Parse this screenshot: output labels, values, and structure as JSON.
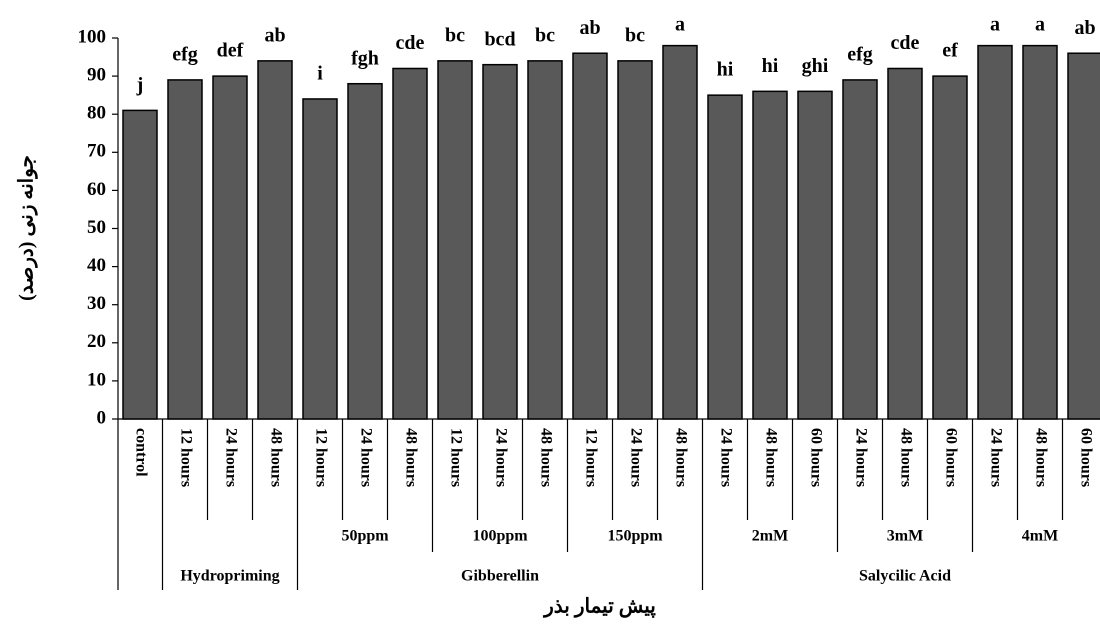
{
  "chart_data": {
    "type": "bar",
    "y_label": "جوانه زنی (درصد)",
    "x_label": "پیش تیمار بذر",
    "categories": [
      "control",
      "12 hours",
      "24 hours",
      "48 hours",
      "12 hours",
      "24 hours",
      "48 hours",
      "12 hours",
      "24 hours",
      "48 hours",
      "12 hours",
      "24 hours",
      "48 hours",
      "24 hours",
      "48 hours",
      "60 hours",
      "24 hours",
      "48 hours",
      "60 hours",
      "24 hours",
      "48 hours",
      "60 hours"
    ],
    "subgroups": [
      null,
      null,
      null,
      null,
      "50ppm",
      "50ppm",
      "50ppm",
      "100ppm",
      "100ppm",
      "100ppm",
      "150ppm",
      "150ppm",
      "150ppm",
      "2mM",
      "2mM",
      "2mM",
      "3mM",
      "3mM",
      "3mM",
      "4mM",
      "4mM",
      "4mM"
    ],
    "groups": [
      null,
      "Hydropriming",
      "Hydropriming",
      "Hydropriming",
      "Gibberellin",
      "Gibberellin",
      "Gibberellin",
      "Gibberellin",
      "Gibberellin",
      "Gibberellin",
      "Gibberellin",
      "Gibberellin",
      "Gibberellin",
      "Salycilic Acid",
      "Salycilic Acid",
      "Salycilic Acid",
      "Salycilic Acid",
      "Salycilic Acid",
      "Salycilic Acid",
      "Salycilic Acid",
      "Salycilic Acid",
      "Salycilic Acid"
    ],
    "values": [
      81,
      89,
      90,
      94,
      84,
      88,
      92,
      94,
      93,
      94,
      96,
      94,
      98,
      85,
      86,
      86,
      89,
      92,
      90,
      98,
      98,
      96
    ],
    "letters": [
      "j",
      "efg",
      "def",
      "ab",
      "i",
      "fgh",
      "cde",
      "bc",
      "bcd",
      "bc",
      "ab",
      "bc",
      "a",
      "hi",
      "hi",
      "ghi",
      "efg",
      "cde",
      "ef",
      "a",
      "a",
      "ab"
    ],
    "color": "#595959",
    "ylim": [
      0,
      100
    ],
    "yticks": [
      0,
      10,
      20,
      30,
      40,
      50,
      60,
      70,
      80,
      90,
      100
    ]
  }
}
